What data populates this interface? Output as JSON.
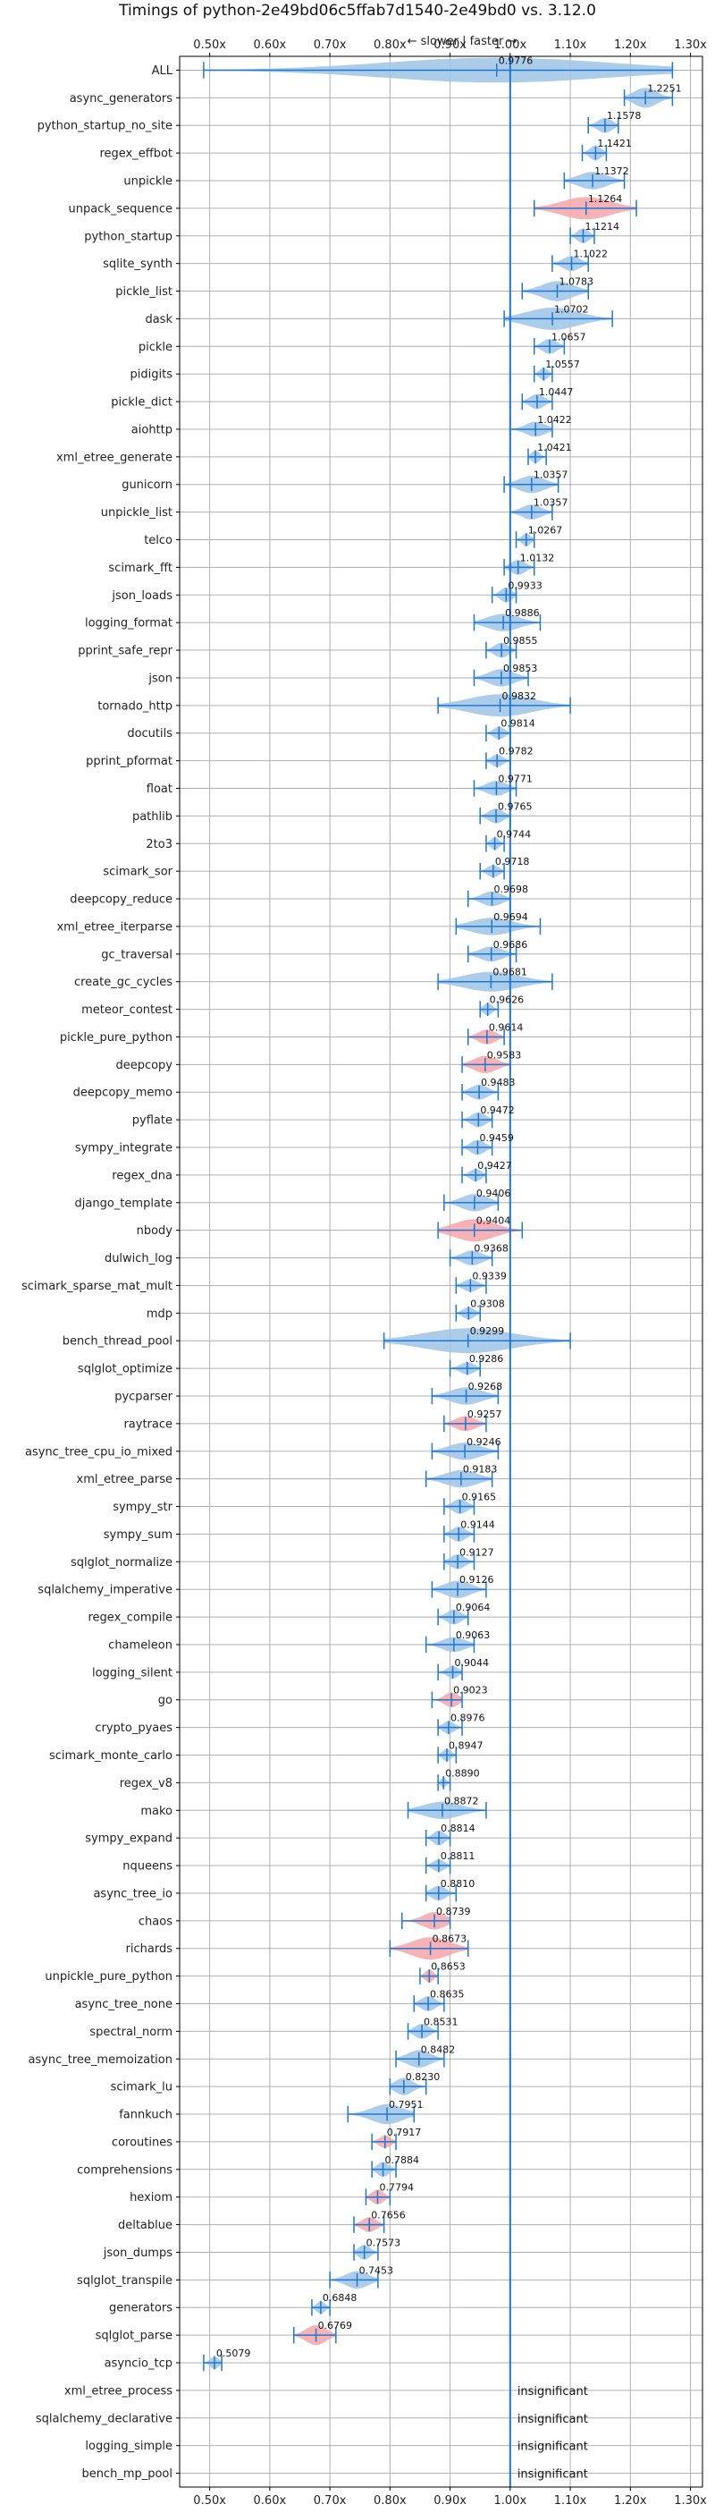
{
  "chart_data": {
    "type": "violin",
    "title": "Timings of python-2e49bd06c5ffab7d1540-2e49bd0 vs. 3.12.0",
    "annotation": "← slower | faster →",
    "xlim": [
      0.45,
      1.32
    ],
    "xticks": [
      "0.50x",
      "0.60x",
      "0.70x",
      "0.80x",
      "0.90x",
      "1.00x",
      "1.10x",
      "1.20x",
      "1.30x"
    ],
    "xtick_values": [
      0.5,
      0.6,
      0.7,
      0.8,
      0.9,
      1.0,
      1.1,
      1.2,
      1.3
    ],
    "reference": 1.0,
    "grid": true,
    "colors": {
      "faster": "#9ec4e6",
      "slower": "#f4a4a8",
      "line": "#1f77d4",
      "reference": "#1f77d4"
    },
    "insignificant_label": "insignificant",
    "benchmarks": [
      {
        "name": "ALL",
        "value": 0.9776,
        "label": "0.9776",
        "lo": 0.49,
        "hi": 1.27,
        "w": 1.0,
        "color": "blue"
      },
      {
        "name": "async_generators",
        "value": 1.2251,
        "label": "1.2251",
        "lo": 1.19,
        "hi": 1.27,
        "w": 0.8,
        "color": "blue"
      },
      {
        "name": "python_startup_no_site",
        "value": 1.1578,
        "label": "1.1578",
        "lo": 1.13,
        "hi": 1.18,
        "w": 0.6,
        "color": "blue"
      },
      {
        "name": "regex_effbot",
        "value": 1.1421,
        "label": "1.1421",
        "lo": 1.12,
        "hi": 1.16,
        "w": 0.6,
        "color": "blue"
      },
      {
        "name": "unpickle",
        "value": 1.1372,
        "label": "1.1372",
        "lo": 1.09,
        "hi": 1.19,
        "w": 0.7,
        "color": "blue"
      },
      {
        "name": "unpack_sequence",
        "value": 1.1264,
        "label": "1.1264",
        "lo": 1.04,
        "hi": 1.21,
        "w": 0.9,
        "color": "red"
      },
      {
        "name": "python_startup",
        "value": 1.1214,
        "label": "1.1214",
        "lo": 1.1,
        "hi": 1.14,
        "w": 0.6,
        "color": "blue"
      },
      {
        "name": "sqlite_synth",
        "value": 1.1022,
        "label": "1.1022",
        "lo": 1.07,
        "hi": 1.13,
        "w": 0.6,
        "color": "blue"
      },
      {
        "name": "pickle_list",
        "value": 1.0783,
        "label": "1.0783",
        "lo": 1.02,
        "hi": 1.13,
        "w": 0.8,
        "color": "blue"
      },
      {
        "name": "dask",
        "value": 1.0702,
        "label": "1.0702",
        "lo": 0.99,
        "hi": 1.17,
        "w": 0.9,
        "color": "blue"
      },
      {
        "name": "pickle",
        "value": 1.0657,
        "label": "1.0657",
        "lo": 1.04,
        "hi": 1.09,
        "w": 0.6,
        "color": "blue"
      },
      {
        "name": "pidigits",
        "value": 1.0557,
        "label": "1.0557",
        "lo": 1.04,
        "hi": 1.07,
        "w": 0.5,
        "color": "blue"
      },
      {
        "name": "pickle_dict",
        "value": 1.0447,
        "label": "1.0447",
        "lo": 1.02,
        "hi": 1.07,
        "w": 0.6,
        "color": "blue"
      },
      {
        "name": "aiohttp",
        "value": 1.0422,
        "label": "1.0422",
        "lo": 1.0,
        "hi": 1.07,
        "w": 0.6,
        "color": "blue"
      },
      {
        "name": "xml_etree_generate",
        "value": 1.0421,
        "label": "1.0421",
        "lo": 1.03,
        "hi": 1.06,
        "w": 0.5,
        "color": "blue"
      },
      {
        "name": "gunicorn",
        "value": 1.0357,
        "label": "1.0357",
        "lo": 0.99,
        "hi": 1.08,
        "w": 0.7,
        "color": "blue"
      },
      {
        "name": "unpickle_list",
        "value": 1.0357,
        "label": "1.0357",
        "lo": 1.0,
        "hi": 1.07,
        "w": 0.6,
        "color": "blue"
      },
      {
        "name": "telco",
        "value": 1.0267,
        "label": "1.0267",
        "lo": 1.01,
        "hi": 1.04,
        "w": 0.5,
        "color": "blue"
      },
      {
        "name": "scimark_fft",
        "value": 1.0132,
        "label": "1.0132",
        "lo": 0.99,
        "hi": 1.04,
        "w": 0.6,
        "color": "blue"
      },
      {
        "name": "json_loads",
        "value": 0.9933,
        "label": "0.9933",
        "lo": 0.97,
        "hi": 1.01,
        "w": 0.6,
        "color": "blue"
      },
      {
        "name": "logging_format",
        "value": 0.9886,
        "label": "0.9886",
        "lo": 0.94,
        "hi": 1.05,
        "w": 0.7,
        "color": "blue"
      },
      {
        "name": "pprint_safe_repr",
        "value": 0.9855,
        "label": "0.9855",
        "lo": 0.96,
        "hi": 1.01,
        "w": 0.6,
        "color": "blue"
      },
      {
        "name": "json",
        "value": 0.9853,
        "label": "0.9853",
        "lo": 0.94,
        "hi": 1.03,
        "w": 0.7,
        "color": "blue"
      },
      {
        "name": "tornado_http",
        "value": 0.9832,
        "label": "0.9832",
        "lo": 0.88,
        "hi": 1.1,
        "w": 0.9,
        "color": "blue"
      },
      {
        "name": "docutils",
        "value": 0.9814,
        "label": "0.9814",
        "lo": 0.96,
        "hi": 1.0,
        "w": 0.5,
        "color": "blue"
      },
      {
        "name": "pprint_pformat",
        "value": 0.9782,
        "label": "0.9782",
        "lo": 0.96,
        "hi": 1.0,
        "w": 0.5,
        "color": "blue"
      },
      {
        "name": "float",
        "value": 0.9771,
        "label": "0.9771",
        "lo": 0.94,
        "hi": 1.01,
        "w": 0.6,
        "color": "blue"
      },
      {
        "name": "pathlib",
        "value": 0.9765,
        "label": "0.9765",
        "lo": 0.95,
        "hi": 1.0,
        "w": 0.6,
        "color": "blue"
      },
      {
        "name": "2to3",
        "value": 0.9744,
        "label": "0.9744",
        "lo": 0.96,
        "hi": 0.99,
        "w": 0.5,
        "color": "blue"
      },
      {
        "name": "scimark_sor",
        "value": 0.9718,
        "label": "0.9718",
        "lo": 0.95,
        "hi": 0.99,
        "w": 0.5,
        "color": "blue"
      },
      {
        "name": "deepcopy_reduce",
        "value": 0.9698,
        "label": "0.9698",
        "lo": 0.93,
        "hi": 1.0,
        "w": 0.6,
        "color": "blue"
      },
      {
        "name": "xml_etree_iterparse",
        "value": 0.9694,
        "label": "0.9694",
        "lo": 0.91,
        "hi": 1.05,
        "w": 0.7,
        "color": "blue"
      },
      {
        "name": "gc_traversal",
        "value": 0.9686,
        "label": "0.9686",
        "lo": 0.93,
        "hi": 1.01,
        "w": 0.6,
        "color": "blue"
      },
      {
        "name": "create_gc_cycles",
        "value": 0.9681,
        "label": "0.9681",
        "lo": 0.88,
        "hi": 1.07,
        "w": 0.8,
        "color": "blue"
      },
      {
        "name": "meteor_contest",
        "value": 0.9626,
        "label": "0.9626",
        "lo": 0.95,
        "hi": 0.98,
        "w": 0.5,
        "color": "blue"
      },
      {
        "name": "pickle_pure_python",
        "value": 0.9614,
        "label": "0.9614",
        "lo": 0.93,
        "hi": 0.99,
        "w": 0.6,
        "color": "red"
      },
      {
        "name": "deepcopy",
        "value": 0.9583,
        "label": "0.9583",
        "lo": 0.92,
        "hi": 1.0,
        "w": 0.7,
        "color": "red"
      },
      {
        "name": "deepcopy_memo",
        "value": 0.9483,
        "label": "0.9483",
        "lo": 0.92,
        "hi": 0.98,
        "w": 0.6,
        "color": "blue"
      },
      {
        "name": "pyflate",
        "value": 0.9472,
        "label": "0.9472",
        "lo": 0.92,
        "hi": 0.97,
        "w": 0.6,
        "color": "blue"
      },
      {
        "name": "sympy_integrate",
        "value": 0.9459,
        "label": "0.9459",
        "lo": 0.92,
        "hi": 0.97,
        "w": 0.6,
        "color": "blue"
      },
      {
        "name": "regex_dna",
        "value": 0.9427,
        "label": "0.9427",
        "lo": 0.92,
        "hi": 0.96,
        "w": 0.5,
        "color": "blue"
      },
      {
        "name": "django_template",
        "value": 0.9406,
        "label": "0.9406",
        "lo": 0.89,
        "hi": 0.98,
        "w": 0.7,
        "color": "blue"
      },
      {
        "name": "nbody",
        "value": 0.9404,
        "label": "0.9404",
        "lo": 0.88,
        "hi": 1.02,
        "w": 0.9,
        "color": "red"
      },
      {
        "name": "dulwich_log",
        "value": 0.9368,
        "label": "0.9368",
        "lo": 0.9,
        "hi": 0.97,
        "w": 0.6,
        "color": "blue"
      },
      {
        "name": "scimark_sparse_mat_mult",
        "value": 0.9339,
        "label": "0.9339",
        "lo": 0.91,
        "hi": 0.96,
        "w": 0.5,
        "color": "blue"
      },
      {
        "name": "mdp",
        "value": 0.9308,
        "label": "0.9308",
        "lo": 0.91,
        "hi": 0.95,
        "w": 0.5,
        "color": "blue"
      },
      {
        "name": "bench_thread_pool",
        "value": 0.9299,
        "label": "0.9299",
        "lo": 0.79,
        "hi": 1.1,
        "w": 1.0,
        "color": "blue"
      },
      {
        "name": "sqlglot_optimize",
        "value": 0.9286,
        "label": "0.9286",
        "lo": 0.9,
        "hi": 0.95,
        "w": 0.5,
        "color": "blue"
      },
      {
        "name": "pycparser",
        "value": 0.9268,
        "label": "0.9268",
        "lo": 0.87,
        "hi": 0.98,
        "w": 0.7,
        "color": "blue"
      },
      {
        "name": "raytrace",
        "value": 0.9257,
        "label": "0.9257",
        "lo": 0.89,
        "hi": 0.96,
        "w": 0.6,
        "color": "red"
      },
      {
        "name": "async_tree_cpu_io_mixed",
        "value": 0.9246,
        "label": "0.9246",
        "lo": 0.87,
        "hi": 0.98,
        "w": 0.7,
        "color": "blue"
      },
      {
        "name": "xml_etree_parse",
        "value": 0.9183,
        "label": "0.9183",
        "lo": 0.86,
        "hi": 0.97,
        "w": 0.7,
        "color": "blue"
      },
      {
        "name": "sympy_str",
        "value": 0.9165,
        "label": "0.9165",
        "lo": 0.89,
        "hi": 0.94,
        "w": 0.6,
        "color": "blue"
      },
      {
        "name": "sympy_sum",
        "value": 0.9144,
        "label": "0.9144",
        "lo": 0.89,
        "hi": 0.94,
        "w": 0.6,
        "color": "blue"
      },
      {
        "name": "sqlglot_normalize",
        "value": 0.9127,
        "label": "0.9127",
        "lo": 0.89,
        "hi": 0.94,
        "w": 0.6,
        "color": "blue"
      },
      {
        "name": "sqlalchemy_imperative",
        "value": 0.9126,
        "label": "0.9126",
        "lo": 0.87,
        "hi": 0.96,
        "w": 0.7,
        "color": "blue"
      },
      {
        "name": "regex_compile",
        "value": 0.9064,
        "label": "0.9064",
        "lo": 0.88,
        "hi": 0.93,
        "w": 0.6,
        "color": "blue"
      },
      {
        "name": "chameleon",
        "value": 0.9063,
        "label": "0.9063",
        "lo": 0.86,
        "hi": 0.94,
        "w": 0.6,
        "color": "blue"
      },
      {
        "name": "logging_silent",
        "value": 0.9044,
        "label": "0.9044",
        "lo": 0.88,
        "hi": 0.92,
        "w": 0.5,
        "color": "blue"
      },
      {
        "name": "go",
        "value": 0.9023,
        "label": "0.9023",
        "lo": 0.87,
        "hi": 0.92,
        "w": 0.6,
        "color": "red"
      },
      {
        "name": "crypto_pyaes",
        "value": 0.8976,
        "label": "0.8976",
        "lo": 0.88,
        "hi": 0.92,
        "w": 0.5,
        "color": "blue"
      },
      {
        "name": "scimark_monte_carlo",
        "value": 0.8947,
        "label": "0.8947",
        "lo": 0.88,
        "hi": 0.91,
        "w": 0.5,
        "color": "blue"
      },
      {
        "name": "regex_v8",
        "value": 0.889,
        "label": "0.8890",
        "lo": 0.88,
        "hi": 0.9,
        "w": 0.4,
        "color": "blue"
      },
      {
        "name": "mako",
        "value": 0.8872,
        "label": "0.8872",
        "lo": 0.83,
        "hi": 0.96,
        "w": 0.7,
        "color": "blue"
      },
      {
        "name": "sympy_expand",
        "value": 0.8814,
        "label": "0.8814",
        "lo": 0.86,
        "hi": 0.9,
        "w": 0.6,
        "color": "blue"
      },
      {
        "name": "nqueens",
        "value": 0.8811,
        "label": "0.8811",
        "lo": 0.86,
        "hi": 0.9,
        "w": 0.5,
        "color": "blue"
      },
      {
        "name": "async_tree_io",
        "value": 0.881,
        "label": "0.8810",
        "lo": 0.86,
        "hi": 0.91,
        "w": 0.6,
        "color": "blue"
      },
      {
        "name": "chaos",
        "value": 0.8739,
        "label": "0.8739",
        "lo": 0.82,
        "hi": 0.9,
        "w": 0.7,
        "color": "red"
      },
      {
        "name": "richards",
        "value": 0.8673,
        "label": "0.8673",
        "lo": 0.8,
        "hi": 0.93,
        "w": 0.9,
        "color": "red"
      },
      {
        "name": "unpickle_pure_python",
        "value": 0.8653,
        "label": "0.8653",
        "lo": 0.85,
        "hi": 0.88,
        "w": 0.5,
        "color": "red"
      },
      {
        "name": "async_tree_none",
        "value": 0.8635,
        "label": "0.8635",
        "lo": 0.84,
        "hi": 0.89,
        "w": 0.6,
        "color": "blue"
      },
      {
        "name": "spectral_norm",
        "value": 0.8531,
        "label": "0.8531",
        "lo": 0.83,
        "hi": 0.88,
        "w": 0.6,
        "color": "blue"
      },
      {
        "name": "async_tree_memoization",
        "value": 0.8482,
        "label": "0.8482",
        "lo": 0.81,
        "hi": 0.89,
        "w": 0.7,
        "color": "blue"
      },
      {
        "name": "scimark_lu",
        "value": 0.823,
        "label": "0.8230",
        "lo": 0.8,
        "hi": 0.86,
        "w": 0.7,
        "color": "blue"
      },
      {
        "name": "fannkuch",
        "value": 0.7951,
        "label": "0.7951",
        "lo": 0.73,
        "hi": 0.84,
        "w": 0.8,
        "color": "blue"
      },
      {
        "name": "coroutines",
        "value": 0.7917,
        "label": "0.7917",
        "lo": 0.77,
        "hi": 0.81,
        "w": 0.5,
        "color": "red"
      },
      {
        "name": "comprehensions",
        "value": 0.7884,
        "label": "0.7884",
        "lo": 0.77,
        "hi": 0.81,
        "w": 0.6,
        "color": "blue"
      },
      {
        "name": "hexiom",
        "value": 0.7794,
        "label": "0.7794",
        "lo": 0.76,
        "hi": 0.8,
        "w": 0.6,
        "color": "red"
      },
      {
        "name": "deltablue",
        "value": 0.7656,
        "label": "0.7656",
        "lo": 0.74,
        "hi": 0.79,
        "w": 0.6,
        "color": "red"
      },
      {
        "name": "json_dumps",
        "value": 0.7573,
        "label": "0.7573",
        "lo": 0.74,
        "hi": 0.78,
        "w": 0.6,
        "color": "blue"
      },
      {
        "name": "sqlglot_transpile",
        "value": 0.7453,
        "label": "0.7453",
        "lo": 0.7,
        "hi": 0.78,
        "w": 0.7,
        "color": "blue"
      },
      {
        "name": "generators",
        "value": 0.6848,
        "label": "0.6848",
        "lo": 0.67,
        "hi": 0.7,
        "w": 0.5,
        "color": "blue"
      },
      {
        "name": "sqlglot_parse",
        "value": 0.6769,
        "label": "0.6769",
        "lo": 0.64,
        "hi": 0.71,
        "w": 0.8,
        "color": "red"
      },
      {
        "name": "asyncio_tcp",
        "value": 0.5079,
        "label": "0.5079",
        "lo": 0.49,
        "hi": 0.52,
        "w": 0.5,
        "color": "blue"
      },
      {
        "name": "xml_etree_process",
        "insignificant": true
      },
      {
        "name": "sqlalchemy_declarative",
        "insignificant": true
      },
      {
        "name": "logging_simple",
        "insignificant": true
      },
      {
        "name": "bench_mp_pool",
        "insignificant": true
      }
    ]
  }
}
